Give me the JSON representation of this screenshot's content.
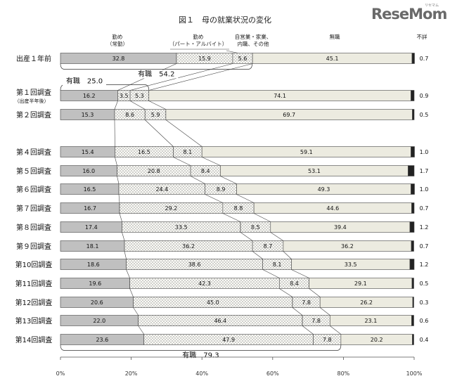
{
  "brand": {
    "logo_text": "ReseMom",
    "logo_sub": "リセマム"
  },
  "chart_data": {
    "type": "bar",
    "orientation": "horizontal",
    "stacked": "percent",
    "title": "図１　母の就業状況の変化",
    "xlim": [
      0,
      100
    ],
    "x_ticks": [
      "0%",
      "20%",
      "40%",
      "60%",
      "80%",
      "100%"
    ],
    "series_headers": [
      {
        "line1": "勤め",
        "line2": "（常勤）"
      },
      {
        "line1": "勤め",
        "line2": "（パート・アルバイト）"
      },
      {
        "line1": "自営業・家業、",
        "line2": "内職、その他"
      },
      {
        "line1": "無職",
        "line2": ""
      },
      {
        "line1": "不詳",
        "line2": ""
      }
    ],
    "series_colors": [
      "#c0c0c0",
      "#f7f7f2",
      "#f7f7f2",
      "#ecebe0",
      "#222222"
    ],
    "rows": [
      {
        "label": "出産１年前",
        "sublabel": "",
        "values": [
          32.8,
          15.9,
          5.6,
          45.1,
          0.7
        ],
        "labels": [
          "32.8",
          "15.9",
          "5.6",
          "45.1",
          "0.7"
        ]
      },
      {
        "label": "第１回調査",
        "sublabel": "（出産半年後）",
        "values": [
          16.2,
          3.5,
          5.3,
          74.1,
          0.9
        ],
        "labels": [
          "16.2",
          "3.5",
          "5.3",
          "74.1",
          "0.9"
        ]
      },
      {
        "label": "第２回調査",
        "sublabel": "",
        "values": [
          15.3,
          8.6,
          5.9,
          69.7,
          0.5
        ],
        "labels": [
          "15.3",
          "8.6",
          "5.9",
          "69.7",
          "0.5"
        ]
      },
      {
        "label": "第４回調査",
        "sublabel": "",
        "values": [
          15.4,
          16.5,
          8.1,
          59.1,
          1.0
        ],
        "labels": [
          "15.4",
          "16.5",
          "8.1",
          "59.1",
          "1.0"
        ]
      },
      {
        "label": "第５回調査",
        "sublabel": "",
        "values": [
          16.0,
          20.8,
          8.4,
          53.1,
          1.7
        ],
        "labels": [
          "16.0",
          "20.8",
          "8.4",
          "53.1",
          "1.7"
        ]
      },
      {
        "label": "第６回調査",
        "sublabel": "",
        "values": [
          16.5,
          24.4,
          8.9,
          49.3,
          1.0
        ],
        "labels": [
          "16.5",
          "24.4",
          "8.9",
          "49.3",
          "1.0"
        ]
      },
      {
        "label": "第７回調査",
        "sublabel": "",
        "values": [
          16.7,
          29.2,
          8.8,
          44.6,
          0.7
        ],
        "labels": [
          "16.7",
          "29.2",
          "8.8",
          "44.6",
          "0.7"
        ]
      },
      {
        "label": "第８回調査",
        "sublabel": "",
        "values": [
          17.4,
          33.5,
          8.5,
          39.4,
          1.2
        ],
        "labels": [
          "17.4",
          "33.5",
          "8.5",
          "39.4",
          "1.2"
        ]
      },
      {
        "label": "第９回調査",
        "sublabel": "",
        "values": [
          18.1,
          36.2,
          8.7,
          36.2,
          0.7
        ],
        "labels": [
          "18.1",
          "36.2",
          "8.7",
          "36.2",
          "0.7"
        ]
      },
      {
        "label": "第10回調査",
        "sublabel": "",
        "values": [
          18.6,
          38.6,
          8.1,
          33.5,
          1.2
        ],
        "labels": [
          "18.6",
          "38.6",
          "8.1",
          "33.5",
          "1.2"
        ]
      },
      {
        "label": "第11回調査",
        "sublabel": "",
        "values": [
          19.6,
          42.3,
          8.4,
          29.1,
          0.5
        ],
        "labels": [
          "19.6",
          "42.3",
          "8.4",
          "29.1",
          "0.5"
        ]
      },
      {
        "label": "第12回調査",
        "sublabel": "",
        "values": [
          20.6,
          45.0,
          7.8,
          26.2,
          0.3
        ],
        "labels": [
          "20.6",
          "45.0",
          "7.8",
          "26.2",
          "0.3"
        ]
      },
      {
        "label": "第13回調査",
        "sublabel": "",
        "values": [
          22.0,
          46.4,
          7.8,
          23.1,
          0.6
        ],
        "labels": [
          "22.0",
          "46.4",
          "7.8",
          "23.1",
          "0.6"
        ]
      },
      {
        "label": "第14回調査",
        "sublabel": "",
        "values": [
          23.6,
          47.9,
          7.8,
          20.2,
          0.4
        ],
        "labels": [
          "23.6",
          "47.9",
          "7.8",
          "20.2",
          "0.4"
        ]
      }
    ],
    "annotations": [
      {
        "text": "有職　54.2",
        "row": 0,
        "side": "below",
        "span": [
          0,
          54.2
        ]
      },
      {
        "text": "有職　25.0",
        "row": 1,
        "side": "above",
        "span": [
          0,
          25.0
        ]
      },
      {
        "text": "有職　79.3",
        "row": 13,
        "side": "below",
        "span": [
          0,
          79.3
        ]
      }
    ]
  }
}
